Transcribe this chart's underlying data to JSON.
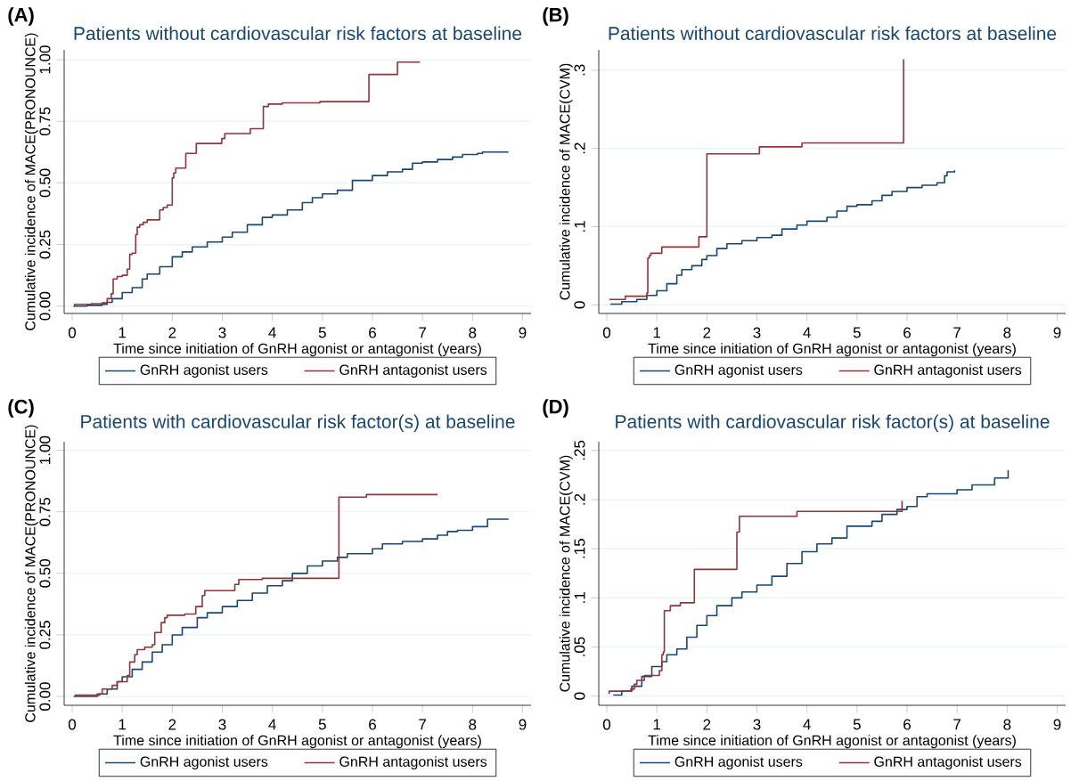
{
  "chart_data": [
    {
      "type": "step",
      "title": "Patients without cardiovascular risk factors at baseline",
      "xlabel": "Time since initiation of GnRH agonist or antagonist (years)",
      "ylabel": "Cumulative incidence of MACE(PRONOUNCE)",
      "annotations": [
        "(A)"
      ],
      "xlim": [
        -0.16,
        9.17
      ],
      "ylim": [
        -0.03,
        1.04
      ],
      "xticks": [
        0,
        1,
        2,
        3,
        4,
        5,
        6,
        7,
        8,
        9
      ],
      "yticks": [
        {
          "value": 0,
          "label": "0.00"
        },
        {
          "value": 0.25,
          "label": "0.25"
        },
        {
          "value": 0.5,
          "label": "0.50"
        },
        {
          "value": 0.75,
          "label": "0.75"
        },
        {
          "value": 1,
          "label": "1.00"
        }
      ],
      "grid": "y",
      "legend": "bottom",
      "line_style": "solid",
      "marker": "none",
      "series": [
        {
          "name": "GnRH agonist users",
          "color": "#1a476f",
          "x": [
            0.03,
            0.3,
            0.6,
            0.7,
            0.8,
            1.0,
            1.2,
            1.4,
            1.5,
            1.75,
            2.0,
            2.2,
            2.4,
            2.7,
            3.0,
            3.2,
            3.5,
            3.8,
            4.0,
            4.3,
            4.6,
            4.8,
            5.0,
            5.3,
            5.6,
            6.0,
            6.3,
            6.6,
            6.8,
            7.0,
            7.3,
            7.6,
            7.8,
            8.1,
            8.2,
            8.72
          ],
          "values": [
            0,
            0.003,
            0.007,
            0.015,
            0.03,
            0.055,
            0.075,
            0.11,
            0.13,
            0.16,
            0.2,
            0.22,
            0.24,
            0.26,
            0.28,
            0.3,
            0.33,
            0.36,
            0.37,
            0.39,
            0.42,
            0.44,
            0.455,
            0.47,
            0.51,
            0.53,
            0.545,
            0.555,
            0.58,
            0.585,
            0.595,
            0.605,
            0.615,
            0.62,
            0.625,
            0.625
          ]
        },
        {
          "name": "GnRH antagonist users",
          "color": "#90353b",
          "x": [
            0.03,
            0.05,
            0.38,
            0.6,
            0.7,
            0.78,
            0.82,
            0.9,
            1.0,
            1.1,
            1.15,
            1.2,
            1.27,
            1.3,
            1.35,
            1.42,
            1.5,
            1.75,
            1.82,
            1.9,
            2.0,
            2.03,
            2.07,
            2.27,
            2.48,
            2.99,
            3.05,
            3.56,
            3.82,
            3.92,
            4.2,
            4.95,
            5.93,
            6.5,
            6.95
          ],
          "values": [
            0,
            0.007,
            0.01,
            0.013,
            0.03,
            0.05,
            0.11,
            0.12,
            0.125,
            0.15,
            0.21,
            0.215,
            0.29,
            0.32,
            0.33,
            0.34,
            0.35,
            0.39,
            0.4,
            0.41,
            0.52,
            0.54,
            0.56,
            0.62,
            0.66,
            0.68,
            0.7,
            0.72,
            0.81,
            0.82,
            0.825,
            0.83,
            0.94,
            0.99,
            0.99
          ]
        }
      ]
    },
    {
      "type": "step",
      "title": "Patients without cardiovascular risk factors at baseline",
      "xlabel": "Time since initiation of GnRH agonist or antagonist (years)",
      "ylabel": "Cumulative incidence of MACE(CVM)",
      "annotations": [
        "(B)"
      ],
      "xlim": [
        -0.16,
        9.17
      ],
      "ylim": [
        -0.011,
        0.326
      ],
      "xticks": [
        0,
        1,
        2,
        3,
        4,
        5,
        6,
        7,
        8,
        9
      ],
      "yticks": [
        0,
        {
          "value": 0.1,
          "label": ".1"
        },
        {
          "value": 0.2,
          "label": ".2"
        },
        {
          "value": 0.3,
          "label": ".3"
        }
      ],
      "grid": "y",
      "legend": "bottom",
      "line_style": "solid",
      "marker": "none",
      "series": [
        {
          "name": "GnRH agonist users",
          "color": "#1a476f",
          "x": [
            0.07,
            0.3,
            0.6,
            0.8,
            1.0,
            1.2,
            1.4,
            1.5,
            1.7,
            1.9,
            2.0,
            2.2,
            2.4,
            2.7,
            3.0,
            3.3,
            3.5,
            3.8,
            4.0,
            4.4,
            4.6,
            4.8,
            5.0,
            5.3,
            5.5,
            5.7,
            6.0,
            6.3,
            6.6,
            6.75,
            6.8,
            6.95
          ],
          "values": [
            0.001,
            0.004,
            0.007,
            0.012,
            0.018,
            0.027,
            0.038,
            0.045,
            0.05,
            0.058,
            0.063,
            0.072,
            0.078,
            0.082,
            0.086,
            0.089,
            0.097,
            0.102,
            0.107,
            0.112,
            0.12,
            0.126,
            0.128,
            0.133,
            0.14,
            0.145,
            0.15,
            0.153,
            0.156,
            0.165,
            0.17,
            0.172
          ]
        },
        {
          "name": "GnRH antagonist users",
          "color": "#90353b",
          "x": [
            0.05,
            0.37,
            0.8,
            0.82,
            0.85,
            0.88,
            1.1,
            1.84,
            2.0,
            3.05,
            3.9,
            5.93
          ],
          "values": [
            0.007,
            0.011,
            0.015,
            0.06,
            0.063,
            0.066,
            0.074,
            0.087,
            0.193,
            0.202,
            0.207,
            0.314
          ]
        }
      ]
    },
    {
      "type": "step",
      "title": "Patients with cardiovascular risk factor(s) at baseline",
      "xlabel": "Time since initiation of GnRH agonist or antagonist (years)",
      "ylabel": "Cumulative incidence of MACE(PRONOUNCE)",
      "annotations": [
        "(C)"
      ],
      "xlim": [
        -0.16,
        9.17
      ],
      "ylim": [
        -0.036,
        1.035
      ],
      "xticks": [
        0,
        1,
        2,
        3,
        4,
        5,
        6,
        7,
        8,
        9
      ],
      "yticks": [
        {
          "value": 0,
          "label": "0.00"
        },
        {
          "value": 0.25,
          "label": "0.25"
        },
        {
          "value": 0.5,
          "label": "0.50"
        },
        {
          "value": 0.75,
          "label": "0.75"
        },
        {
          "value": 1,
          "label": "1.00"
        }
      ],
      "grid": "y",
      "legend": "bottom",
      "line_style": "solid",
      "marker": "none",
      "series": [
        {
          "name": "GnRH agonist users",
          "color": "#1a476f",
          "x": [
            0.03,
            0.5,
            0.7,
            0.9,
            1.0,
            1.2,
            1.4,
            1.6,
            1.8,
            2.0,
            2.2,
            2.5,
            2.7,
            3.0,
            3.3,
            3.6,
            3.9,
            4.2,
            4.4,
            4.7,
            5.0,
            5.3,
            5.5,
            6.0,
            6.2,
            6.6,
            7.0,
            7.3,
            7.5,
            7.7,
            8.0,
            8.3,
            8.72
          ],
          "values": [
            0,
            0.01,
            0.03,
            0.06,
            0.08,
            0.11,
            0.14,
            0.18,
            0.21,
            0.25,
            0.28,
            0.32,
            0.34,
            0.365,
            0.39,
            0.42,
            0.45,
            0.47,
            0.5,
            0.53,
            0.55,
            0.565,
            0.58,
            0.6,
            0.62,
            0.63,
            0.64,
            0.655,
            0.67,
            0.675,
            0.69,
            0.72,
            0.72
          ]
        },
        {
          "name": "GnRH antagonist users",
          "color": "#90353b",
          "x": [
            0.05,
            0.55,
            0.6,
            0.8,
            0.9,
            1.1,
            1.15,
            1.25,
            1.3,
            1.45,
            1.6,
            1.65,
            1.78,
            1.85,
            1.9,
            2.25,
            2.47,
            2.6,
            2.65,
            3.25,
            3.33,
            3.8,
            5.33,
            5.88,
            7.3
          ],
          "values": [
            0.005,
            0.01,
            0.03,
            0.045,
            0.06,
            0.085,
            0.14,
            0.17,
            0.19,
            0.2,
            0.21,
            0.26,
            0.3,
            0.32,
            0.33,
            0.335,
            0.365,
            0.41,
            0.43,
            0.455,
            0.475,
            0.48,
            0.81,
            0.82,
            0.82
          ]
        }
      ]
    },
    {
      "type": "step",
      "title": "Patients with cardiovascular risk factor(s) at baseline",
      "xlabel": "Time since initiation of GnRH agonist or antagonist (years)",
      "ylabel": "Cumulative incidence of MACE(CVM)",
      "annotations": [
        "(D)"
      ],
      "xlim": [
        -0.16,
        9.17
      ],
      "ylim": [
        -0.0094,
        0.259
      ],
      "xticks": [
        0,
        1,
        2,
        3,
        4,
        5,
        6,
        7,
        8,
        9
      ],
      "yticks": [
        0,
        {
          "value": 0.05,
          "label": ".05"
        },
        {
          "value": 0.1,
          "label": ".1"
        },
        {
          "value": 0.15,
          "label": ".15"
        },
        {
          "value": 0.2,
          "label": ".2"
        },
        {
          "value": 0.25,
          "label": ".25"
        }
      ],
      "grid": "y",
      "legend": "bottom",
      "line_style": "solid",
      "marker": "none",
      "series": [
        {
          "name": "GnRH agonist users",
          "color": "#1a476f",
          "x": [
            0.13,
            0.3,
            0.5,
            0.7,
            0.9,
            1.1,
            1.2,
            1.4,
            1.6,
            1.8,
            2.0,
            2.2,
            2.5,
            2.7,
            3.0,
            3.3,
            3.6,
            3.9,
            4.2,
            4.5,
            4.8,
            5.3,
            5.5,
            5.8,
            6.0,
            6.2,
            6.4,
            7.0,
            7.3,
            7.75,
            8.02
          ],
          "values": [
            0.001,
            0.005,
            0.01,
            0.02,
            0.03,
            0.035,
            0.042,
            0.048,
            0.06,
            0.072,
            0.082,
            0.092,
            0.1,
            0.106,
            0.113,
            0.122,
            0.135,
            0.147,
            0.155,
            0.161,
            0.173,
            0.178,
            0.185,
            0.19,
            0.193,
            0.203,
            0.206,
            0.21,
            0.215,
            0.222,
            0.23
          ]
        },
        {
          "name": "GnRH antagonist users",
          "color": "#90353b",
          "x": [
            0.03,
            0.05,
            0.48,
            0.55,
            0.6,
            0.75,
            1.05,
            1.1,
            1.13,
            1.15,
            1.27,
            1.47,
            1.75,
            2.6,
            2.65,
            3.8,
            5.9
          ],
          "values": [
            0.003,
            0.005,
            0.007,
            0.012,
            0.016,
            0.021,
            0.026,
            0.042,
            0.045,
            0.087,
            0.092,
            0.095,
            0.129,
            0.167,
            0.183,
            0.188,
            0.199
          ]
        }
      ]
    }
  ]
}
